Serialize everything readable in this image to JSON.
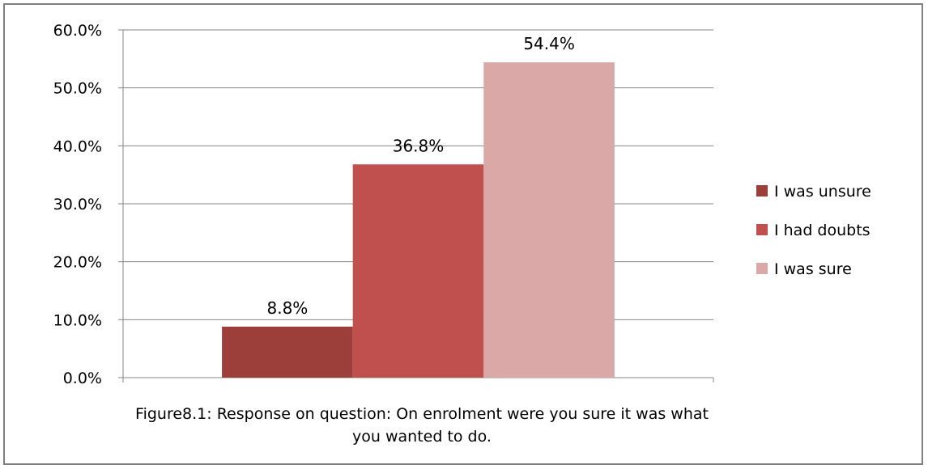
{
  "chart_data": {
    "type": "bar",
    "categories": [
      ""
    ],
    "series": [
      {
        "name": "I was unsure",
        "values": [
          8.8
        ],
        "color": "#9c3f3b",
        "label": "8.8%"
      },
      {
        "name": "I had doubts",
        "values": [
          36.8
        ],
        "color": "#c0504d",
        "label": "36.8%"
      },
      {
        "name": "I was sure",
        "values": [
          54.4
        ],
        "color": "#d9a8a7",
        "label": "54.4%"
      }
    ],
    "title": "",
    "xlabel": "",
    "ylabel": "",
    "ylim": [
      0,
      60
    ],
    "yticks": [
      {
        "value": 0,
        "label": "0.0%"
      },
      {
        "value": 10,
        "label": "10.0%"
      },
      {
        "value": 20,
        "label": "20.0%"
      },
      {
        "value": 30,
        "label": "30.0%"
      },
      {
        "value": 40,
        "label": "40.0%"
      },
      {
        "value": 50,
        "label": "50.0%"
      },
      {
        "value": 60,
        "label": "60.0%"
      }
    ],
    "grid": true,
    "legend_position": "right"
  },
  "caption": "Figure8.1: Response on question: On enrolment were you sure it was what you wanted to do."
}
